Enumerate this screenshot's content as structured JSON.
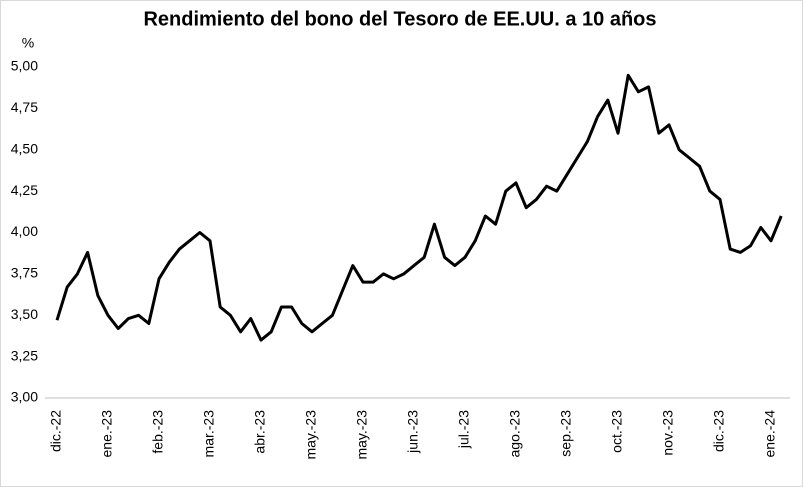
{
  "chart_data": {
    "type": "line",
    "title": "Rendimiento del bono del Tesoro de EE.UU. a 10 años",
    "y_label": "%",
    "categories": [
      "dic.-22",
      null,
      null,
      null,
      null,
      "ene.-23",
      null,
      null,
      null,
      null,
      "feb.-23",
      null,
      null,
      null,
      null,
      "mar.-23",
      null,
      null,
      null,
      null,
      "abr.-23",
      null,
      null,
      null,
      null,
      "may.-23",
      null,
      null,
      null,
      null,
      "may.-23",
      null,
      null,
      null,
      null,
      "jun.-23",
      null,
      null,
      null,
      null,
      "jul.-23",
      null,
      null,
      null,
      null,
      "ago.-23",
      null,
      null,
      null,
      null,
      "sep.-23",
      null,
      null,
      null,
      null,
      "oct.-23",
      null,
      null,
      null,
      null,
      "nov.-23",
      null,
      null,
      null,
      null,
      "dic.-23",
      null,
      null,
      null,
      null,
      "ene.-24",
      null
    ],
    "values": [
      3.47,
      3.67,
      3.75,
      3.88,
      3.62,
      3.5,
      3.42,
      3.48,
      3.5,
      3.45,
      3.72,
      3.82,
      3.9,
      3.95,
      4.0,
      3.95,
      3.55,
      3.5,
      3.4,
      3.48,
      3.35,
      3.4,
      3.55,
      3.55,
      3.45,
      3.4,
      3.45,
      3.5,
      3.65,
      3.8,
      3.7,
      3.7,
      3.75,
      3.72,
      3.75,
      3.8,
      3.85,
      4.05,
      3.85,
      3.8,
      3.85,
      3.95,
      4.1,
      4.05,
      4.25,
      4.3,
      4.15,
      4.2,
      4.28,
      4.25,
      4.35,
      4.45,
      4.55,
      4.7,
      4.8,
      4.6,
      4.95,
      4.85,
      4.88,
      4.6,
      4.65,
      4.5,
      4.45,
      4.4,
      4.25,
      4.2,
      3.9,
      3.88,
      3.92,
      4.03,
      3.95,
      4.1
    ],
    "color": "#000000",
    "ylim": [
      3,
      5
    ],
    "yticks": [
      {
        "value": 3,
        "label": "3,00"
      },
      {
        "value": 3.25,
        "label": "3,25"
      },
      {
        "value": 3.5,
        "label": "3,50"
      },
      {
        "value": 3.75,
        "label": "3,75"
      },
      {
        "value": 4,
        "label": "4,00"
      },
      {
        "value": 4.25,
        "label": "4,25"
      },
      {
        "value": 4.5,
        "label": "4,50"
      },
      {
        "value": 4.75,
        "label": "4,75"
      },
      {
        "value": 5,
        "label": "5,00"
      }
    ],
    "grid": false
  }
}
